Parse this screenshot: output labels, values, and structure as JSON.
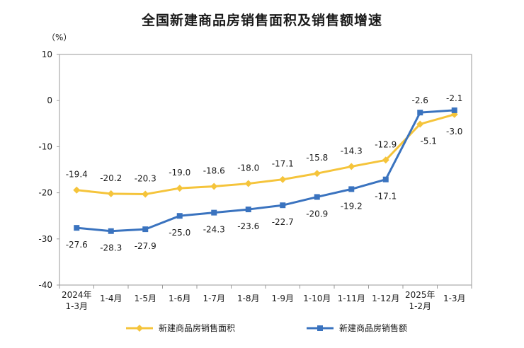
{
  "chart_data": {
    "type": "line",
    "title": "全国新建商品房销售面积及销售额增速",
    "unit_label": "（%）",
    "ylim": [
      -40,
      10
    ],
    "yticks": [
      10,
      0,
      -10,
      -20,
      -30,
      -40
    ],
    "grid": false,
    "legend_position": "bottom",
    "categories": [
      [
        "2024年",
        "1-3月"
      ],
      [
        "1-4月"
      ],
      [
        "1-5月"
      ],
      [
        "1-6月"
      ],
      [
        "1-7月"
      ],
      [
        "1-8月"
      ],
      [
        "1-9月"
      ],
      [
        "1-10月"
      ],
      [
        "1-11月"
      ],
      [
        "1-12月"
      ],
      [
        "2025年",
        "1-2月"
      ],
      [
        "1-3月"
      ]
    ],
    "series": [
      {
        "name": "新建商品房销售面积",
        "color": "#f5c43b",
        "values": [
          -19.4,
          -20.2,
          -20.3,
          -19.0,
          -18.6,
          -18.0,
          -17.1,
          -15.8,
          -14.3,
          -12.9,
          -5.1,
          -3.0
        ],
        "labels": [
          "-19.4",
          "-20.2",
          "-20.3",
          "-19.0",
          "-18.6",
          "-18.0",
          "-17.1",
          "-15.8",
          "-14.3",
          "-12.9",
          "-5.1",
          "-3.0"
        ]
      },
      {
        "name": "新建商品房销售额",
        "color": "#3a73bf",
        "values": [
          -27.6,
          -28.3,
          -27.9,
          -25.0,
          -24.3,
          -23.6,
          -22.7,
          -20.9,
          -19.2,
          -17.1,
          -2.6,
          -2.1
        ],
        "labels": [
          "-27.6",
          "-28.3",
          "-27.9",
          "-25.0",
          "-24.3",
          "-23.6",
          "-22.7",
          "-20.9",
          "-19.2",
          "-17.1",
          "-2.6",
          "-2.1"
        ]
      }
    ]
  }
}
